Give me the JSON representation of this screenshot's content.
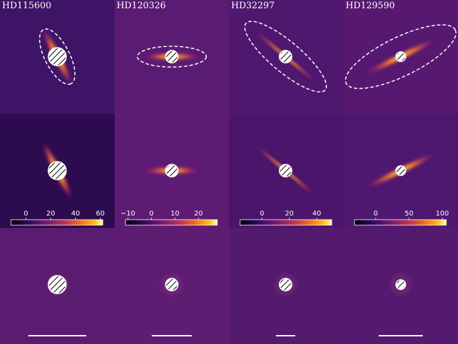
{
  "panels": [
    {
      "title": "HD115600",
      "colorbar": {
        "lim": [
          -12,
          62
        ],
        "ticks": [
          0,
          20,
          40,
          60
        ]
      }
    },
    {
      "title": "HD120326",
      "colorbar": {
        "lim": [
          -11,
          28
        ],
        "ticks": [
          {
            "value": -10,
            "label": "−10"
          },
          0,
          10,
          20
        ]
      }
    },
    {
      "title": "HD32297",
      "colorbar": {
        "lim": [
          -16,
          51
        ],
        "ticks": [
          0,
          20,
          40
        ]
      }
    },
    {
      "title": "HD129590",
      "colorbar": {
        "lim": [
          -32,
          106
        ],
        "ticks": [
          0,
          50,
          100
        ]
      }
    }
  ]
}
